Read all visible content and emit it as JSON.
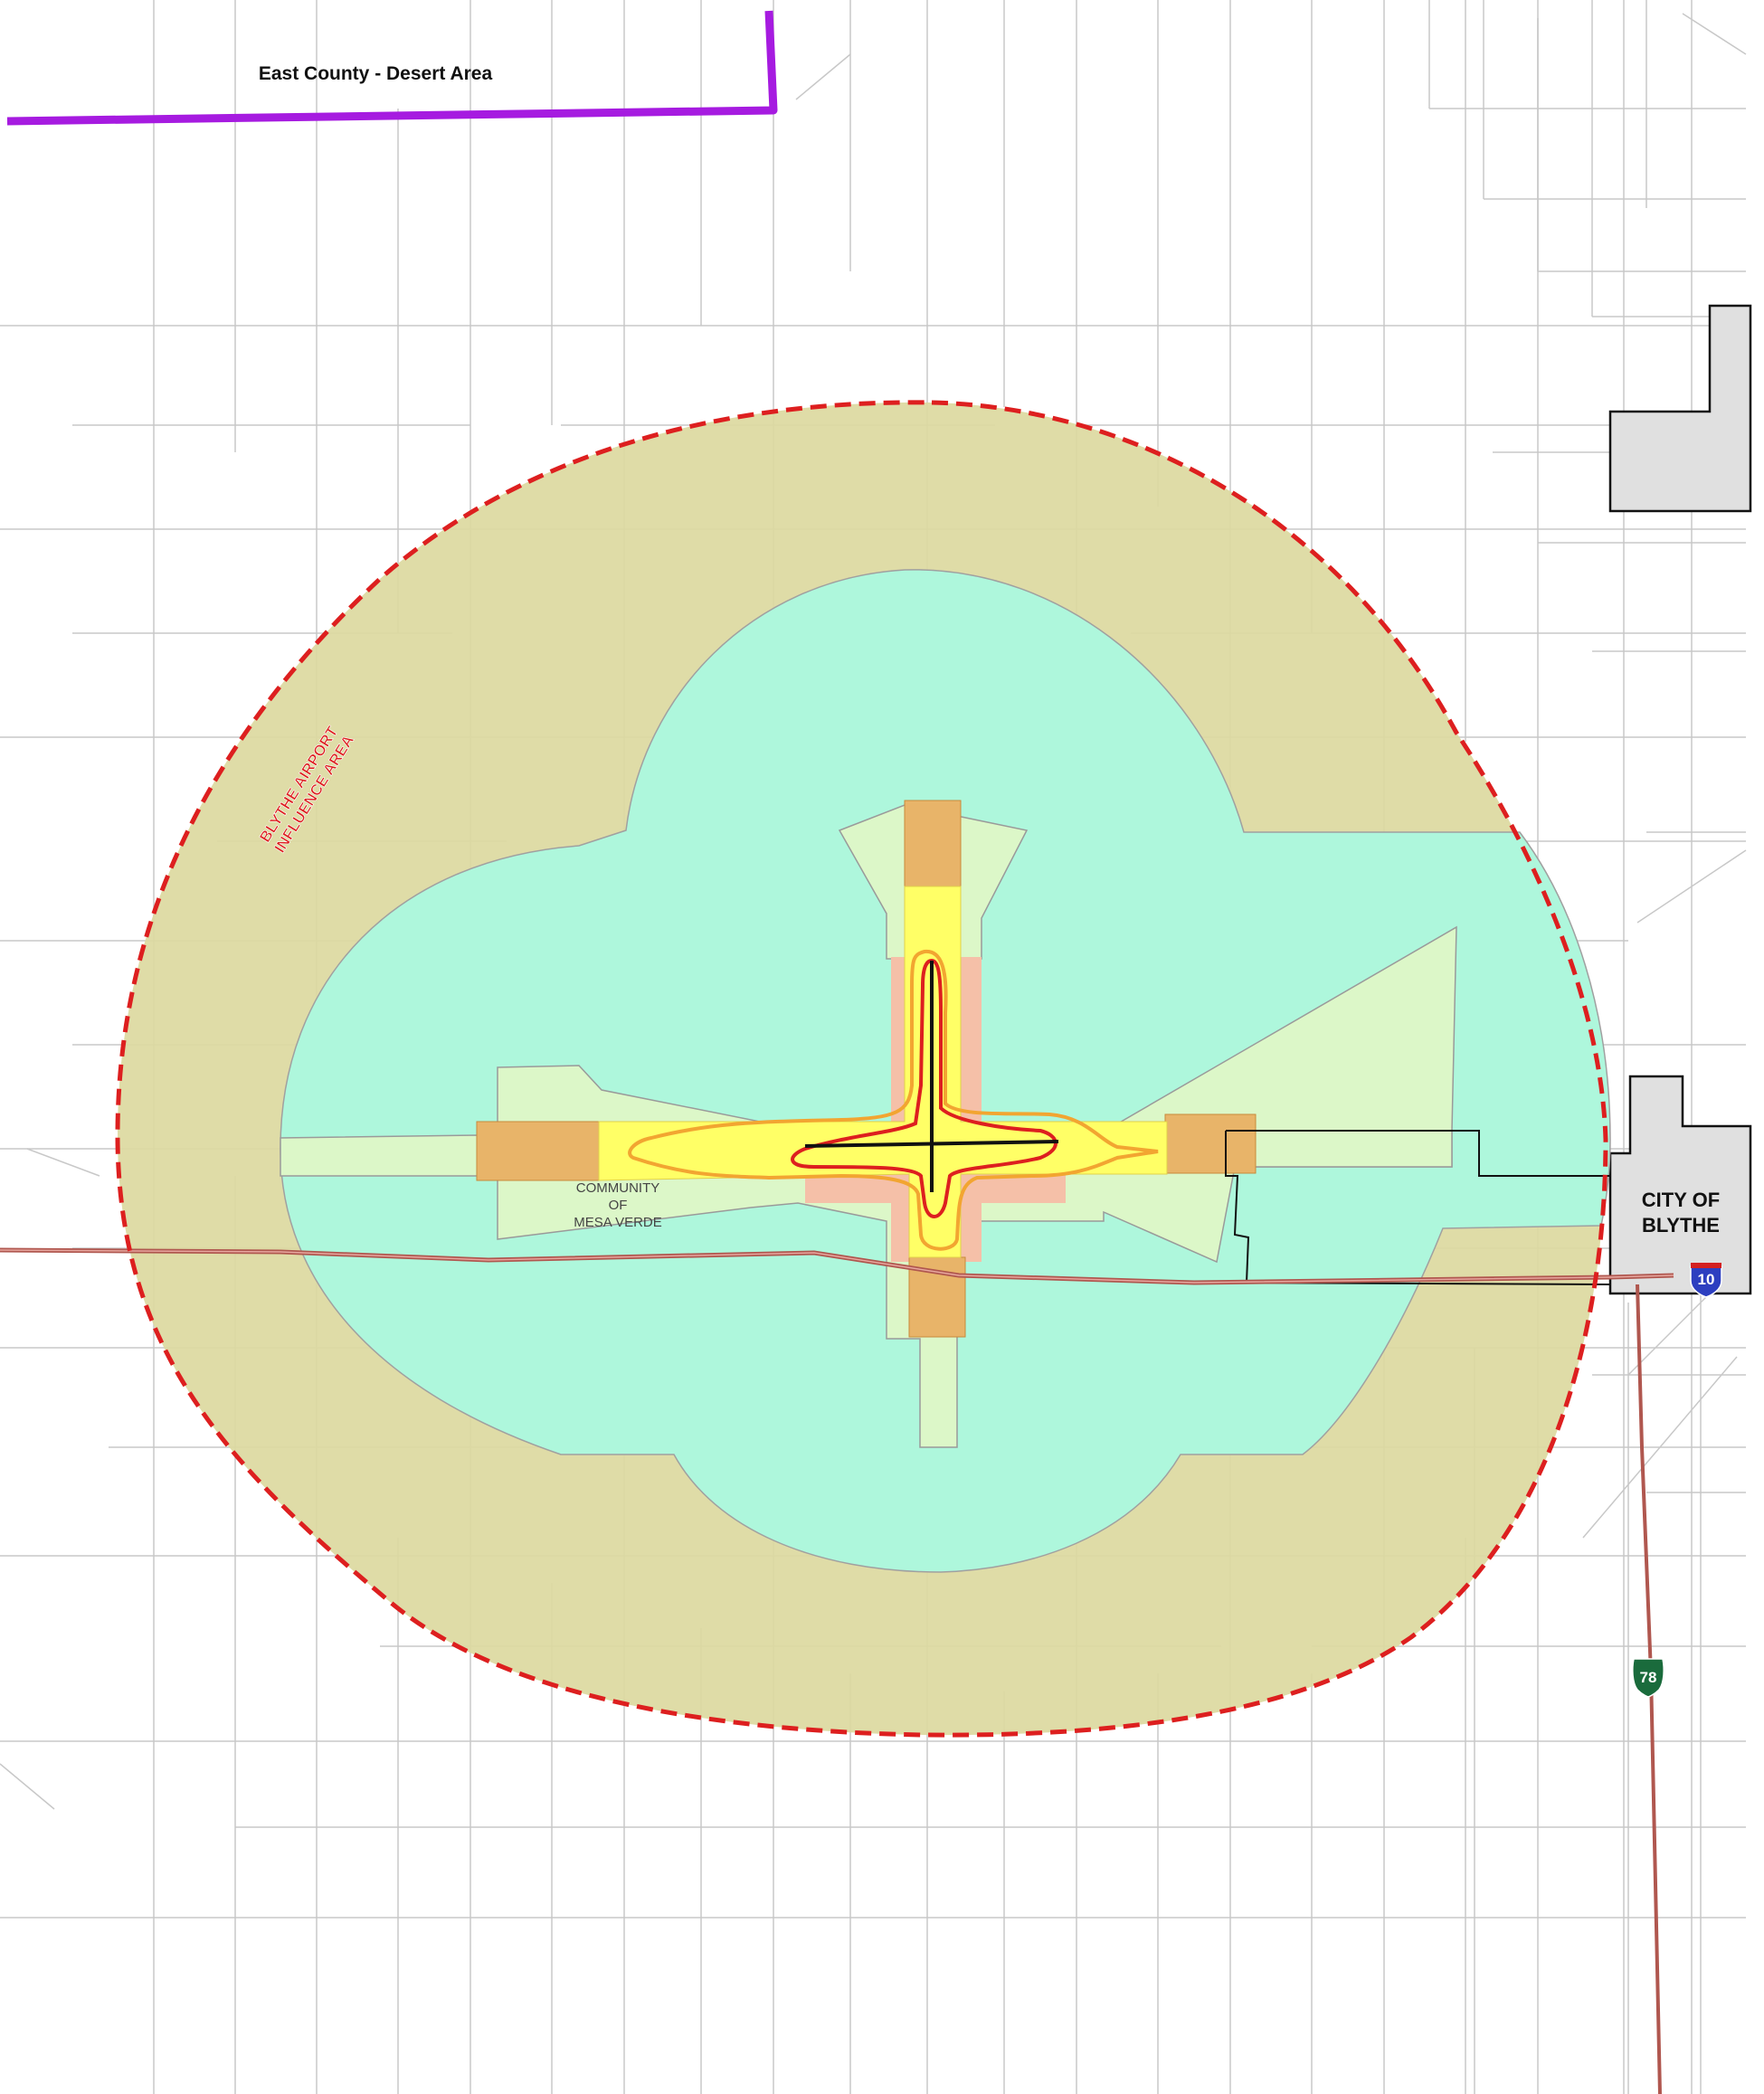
{
  "labels": {
    "region": "East County - Desert Area",
    "influence_area_line1": "BLYTHE AIRPORT",
    "influence_area_line2": "INFLUENCE AREA",
    "community_line1": "COMMUNITY",
    "community_line2": "OF",
    "community_line3": "MESA VERDE",
    "city_line1": "CITY OF",
    "city_line2": "BLYTHE"
  },
  "shields": {
    "interstate": "10",
    "state_route": "78"
  },
  "colors": {
    "background": "#ffffff",
    "parcel_line": "#c8c8c8",
    "region_boundary": "#a61be0",
    "influence_boundary": "#dd1f1f",
    "outer_zone": "#dcd9a0",
    "middle_zone": "#aef7dc",
    "inner_zone": "#dcf7c8",
    "runway_protection": "#e8b469",
    "clear_zone": "#ffff66",
    "adjacent_zone": "#f5c0a8",
    "city_area": "#e0e0e0",
    "highway": "#b0574f",
    "interstate_shield": "#2d3fc0",
    "state_route_shield": "#1a6b3c"
  }
}
